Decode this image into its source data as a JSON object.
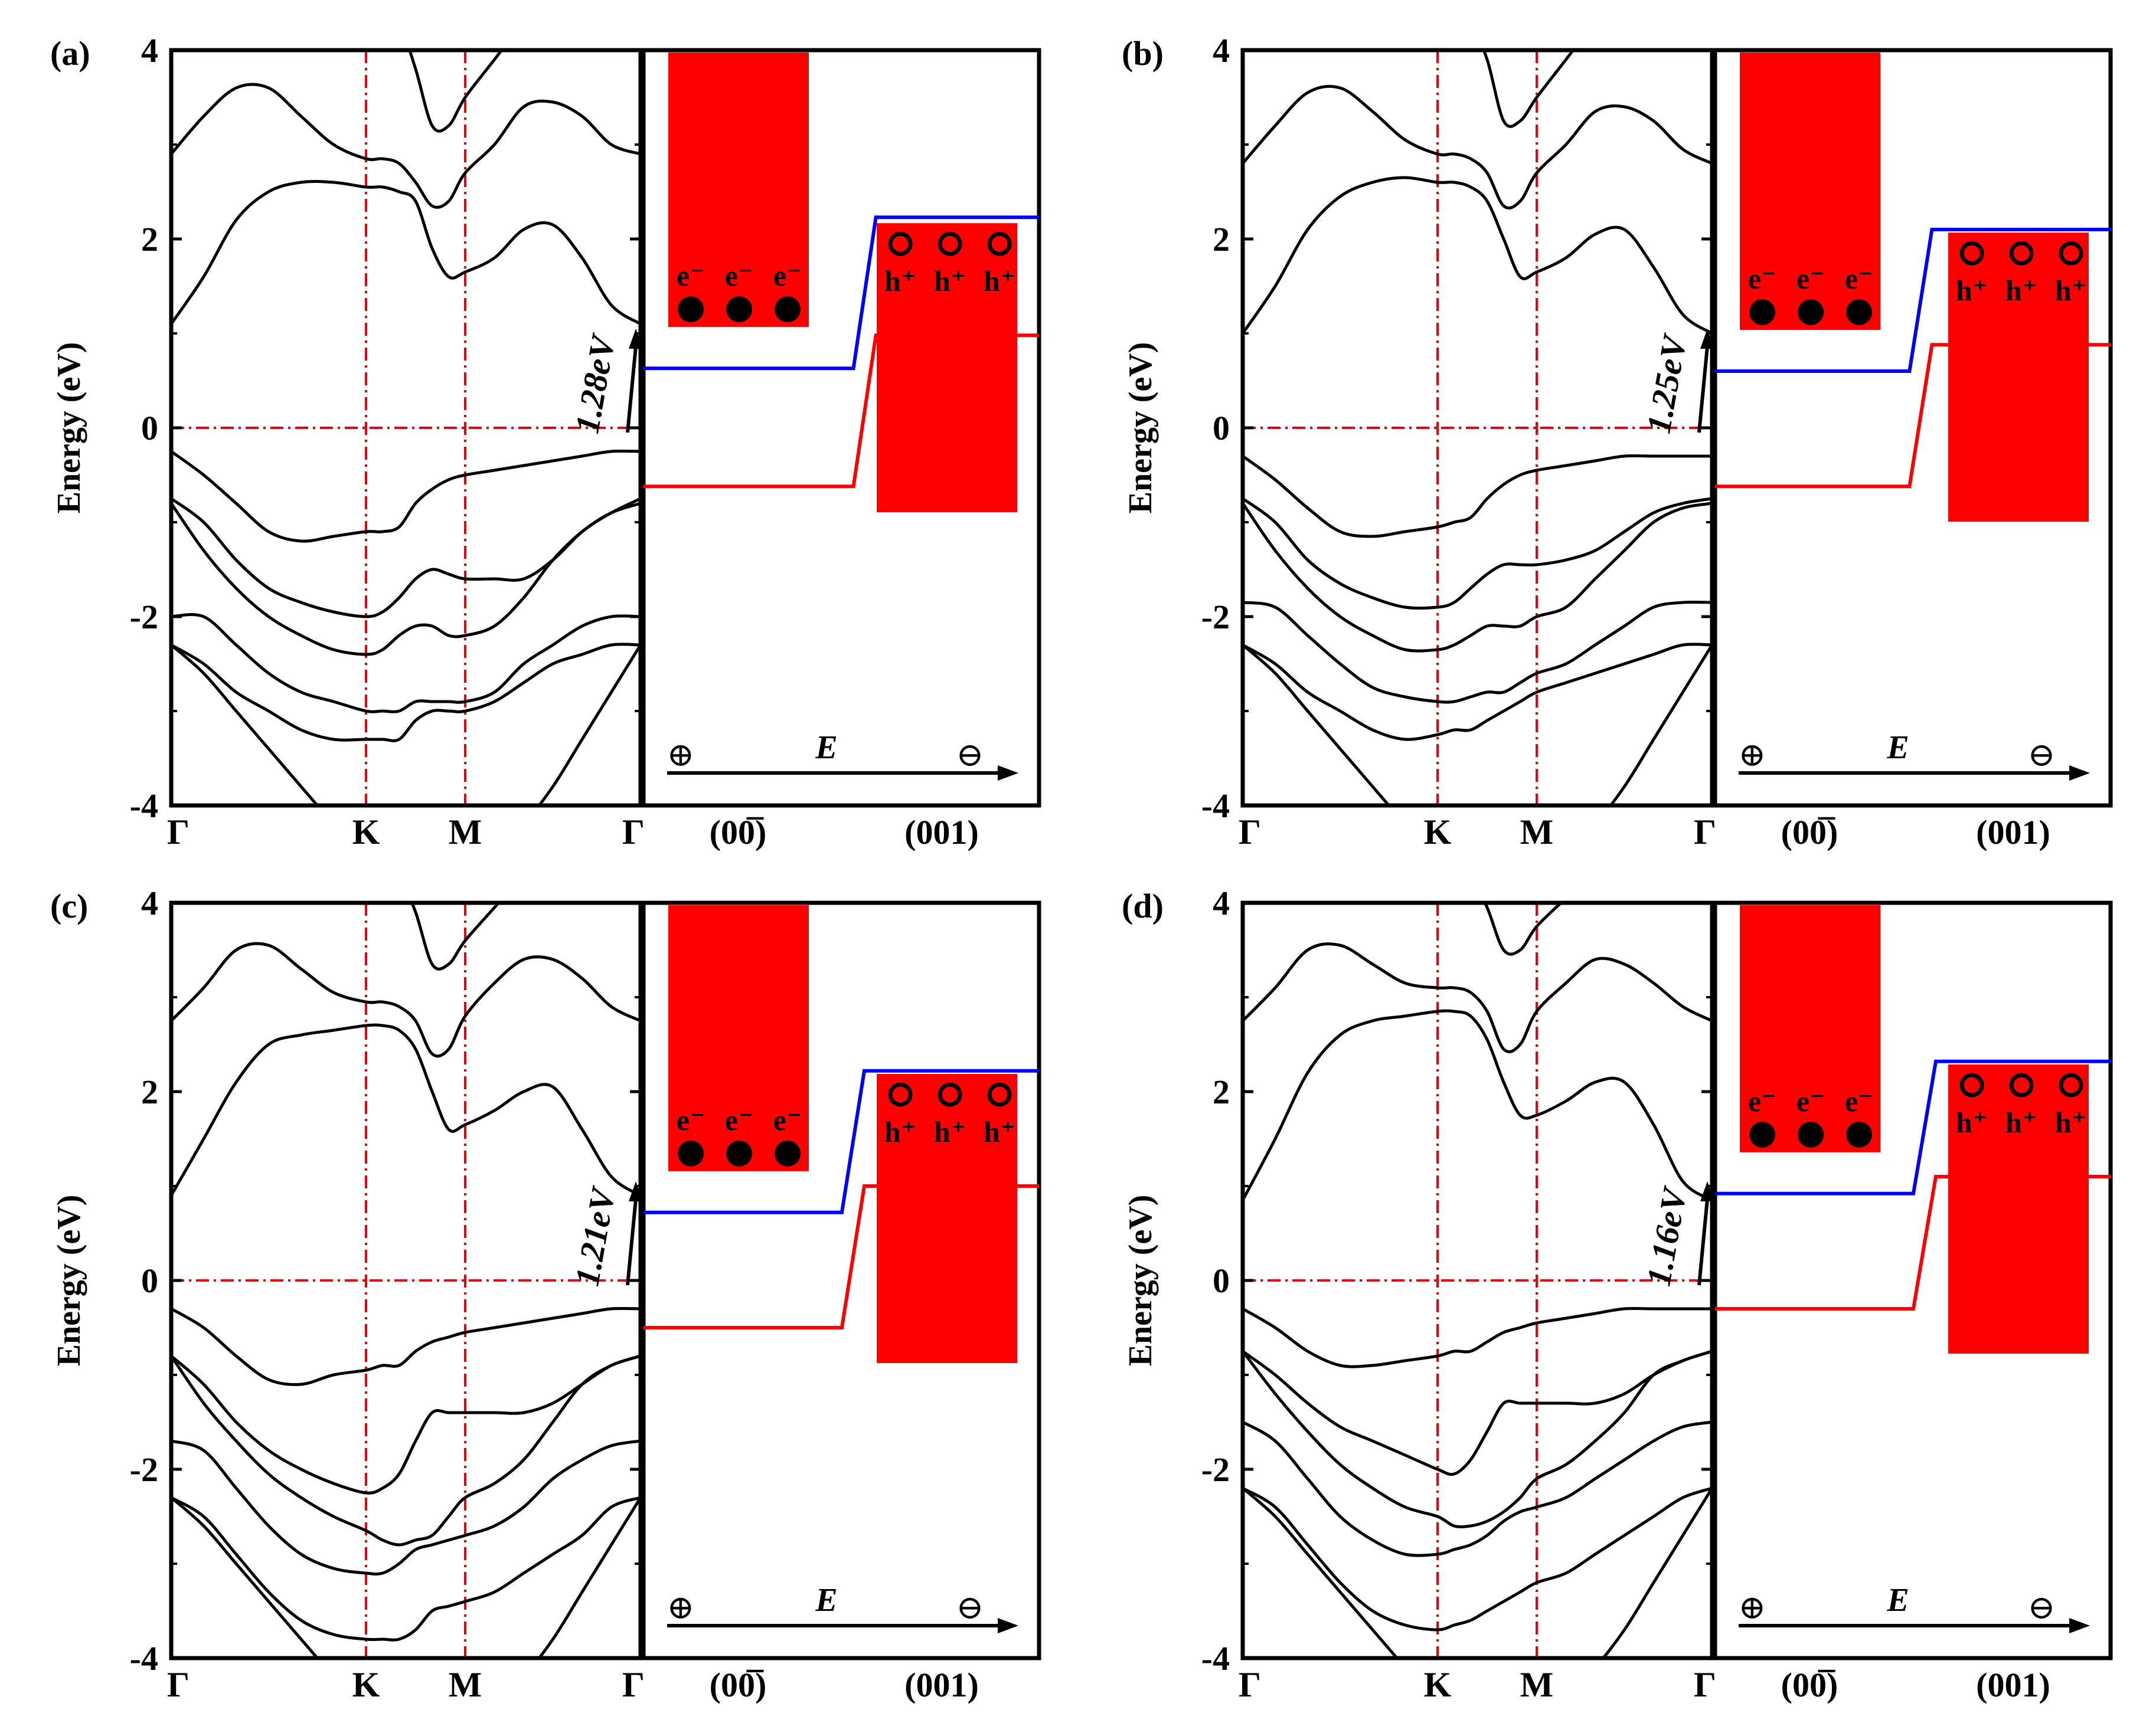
{
  "chart_data": [
    {
      "panel": "(a)",
      "type": "line",
      "ylabel": "Energy (eV)",
      "ylim": [
        -4,
        4
      ],
      "yticks": [
        "-4",
        "-2",
        "0",
        "2",
        "4"
      ],
      "kpoints": [
        "Γ",
        "K",
        "M",
        "Γ"
      ],
      "gap_label": "1.28eV",
      "x": [
        0,
        0.5,
        1,
        1.5,
        2,
        2.5,
        3,
        3.5,
        4,
        4.5,
        5,
        5.5,
        6,
        6.5,
        7,
        7.5,
        8,
        8.5,
        9
      ],
      "bands": [
        [
          -2.3,
          -2.6,
          -3.0,
          -3.4,
          -3.8,
          -4.2,
          -4.6,
          -5.0,
          -5.4,
          -5.0,
          -4.8,
          -4.7,
          -4.6,
          -4.5,
          -4.2,
          -3.8,
          -3.3,
          -2.8,
          -2.3
        ],
        [
          -2.3,
          -2.5,
          -2.8,
          -3.0,
          -3.2,
          -3.3,
          -3.3,
          -3.3,
          -3.3,
          -3.1,
          -3.0,
          -3.0,
          -3.0,
          -2.9,
          -2.7,
          -2.5,
          -2.4,
          -2.3,
          -2.3
        ],
        [
          -2.0,
          -2.0,
          -2.3,
          -2.6,
          -2.8,
          -2.9,
          -3.0,
          -3.0,
          -3.0,
          -2.9,
          -2.9,
          -2.9,
          -2.9,
          -2.8,
          -2.5,
          -2.3,
          -2.1,
          -2.0,
          -2.0
        ],
        [
          -0.8,
          -1.3,
          -1.7,
          -2.0,
          -2.2,
          -2.35,
          -2.4,
          -2.35,
          -2.2,
          -2.1,
          -2.1,
          -2.2,
          -2.2,
          -2.1,
          -1.8,
          -1.4,
          -1.1,
          -0.9,
          -0.8
        ],
        [
          -0.75,
          -1.0,
          -1.4,
          -1.7,
          -1.85,
          -1.95,
          -2.0,
          -1.95,
          -1.8,
          -1.6,
          -1.5,
          -1.55,
          -1.6,
          -1.6,
          -1.6,
          -1.4,
          -1.1,
          -0.9,
          -0.75
        ],
        [
          -0.25,
          -0.5,
          -0.8,
          -1.1,
          -1.2,
          -1.15,
          -1.1,
          -1.1,
          -1.05,
          -0.8,
          -0.65,
          -0.55,
          -0.5,
          -0.45,
          -0.4,
          -0.35,
          -0.3,
          -0.25,
          -0.25
        ],
        [
          1.1,
          1.6,
          2.2,
          2.5,
          2.6,
          2.6,
          2.55,
          2.55,
          2.5,
          2.4,
          1.9,
          1.6,
          1.65,
          1.8,
          2.1,
          2.15,
          1.8,
          1.3,
          1.1
        ],
        [
          2.9,
          3.3,
          3.6,
          3.6,
          3.3,
          3.0,
          2.85,
          2.85,
          2.8,
          2.6,
          2.35,
          2.4,
          2.7,
          3.0,
          3.4,
          3.45,
          3.3,
          3.0,
          2.9
        ],
        [
          4.5,
          4.8,
          5.0,
          5.1,
          5.0,
          4.8,
          4.6,
          4.5,
          4.3,
          3.8,
          3.2,
          3.2,
          3.5,
          3.9,
          4.3,
          4.6,
          4.7,
          4.6,
          4.5
        ]
      ],
      "diagram": {
        "facets": [
          "(00̅)",
          "(001)"
        ],
        "field_label": "E",
        "plus_symbol": "⊕",
        "minus_symbol": "⊖",
        "electron_label": "e⁻",
        "hole_label": "h⁺",
        "cbm": [
          0.63,
          2.23
        ],
        "vbm": [
          -0.62,
          0.98
        ],
        "step_fraction": 0.52
      }
    },
    {
      "panel": "(b)",
      "type": "line",
      "ylabel": "Energy (eV)",
      "ylim": [
        -4,
        4
      ],
      "yticks": [
        "-4",
        "-2",
        "0",
        "2",
        "4"
      ],
      "kpoints": [
        "Γ",
        "K",
        "M",
        "Γ"
      ],
      "gap_label": "1.25eV",
      "x": [
        0,
        0.5,
        1,
        1.5,
        2,
        2.5,
        3,
        3.5,
        4,
        4.5,
        5,
        5.5,
        6,
        6.5,
        7,
        7.5,
        8,
        8.5,
        9
      ],
      "bands": [
        [
          -2.3,
          -2.6,
          -3.0,
          -3.4,
          -3.8,
          -4.2,
          -4.6,
          -5.0,
          -5.4,
          -5.0,
          -4.8,
          -4.7,
          -4.6,
          -4.5,
          -4.2,
          -3.8,
          -3.3,
          -2.8,
          -2.3
        ],
        [
          -2.3,
          -2.5,
          -2.8,
          -3.0,
          -3.2,
          -3.3,
          -3.25,
          -3.2,
          -3.2,
          -3.1,
          -3.0,
          -2.9,
          -2.8,
          -2.7,
          -2.6,
          -2.5,
          -2.4,
          -2.3,
          -2.3
        ],
        [
          -1.85,
          -1.9,
          -2.2,
          -2.5,
          -2.75,
          -2.85,
          -2.9,
          -2.9,
          -2.85,
          -2.8,
          -2.8,
          -2.7,
          -2.6,
          -2.5,
          -2.3,
          -2.1,
          -1.9,
          -1.85,
          -1.85
        ],
        [
          -0.8,
          -1.3,
          -1.7,
          -2.0,
          -2.2,
          -2.35,
          -2.35,
          -2.3,
          -2.2,
          -2.1,
          -2.1,
          -2.1,
          -2.0,
          -1.9,
          -1.6,
          -1.3,
          -1.0,
          -0.85,
          -0.8
        ],
        [
          -0.75,
          -1.0,
          -1.4,
          -1.65,
          -1.8,
          -1.9,
          -1.9,
          -1.85,
          -1.7,
          -1.55,
          -1.45,
          -1.45,
          -1.45,
          -1.4,
          -1.3,
          -1.1,
          -0.9,
          -0.8,
          -0.75
        ],
        [
          -0.3,
          -0.55,
          -0.85,
          -1.1,
          -1.15,
          -1.1,
          -1.05,
          -1.0,
          -0.95,
          -0.75,
          -0.6,
          -0.5,
          -0.45,
          -0.4,
          -0.35,
          -0.3,
          -0.3,
          -0.3,
          -0.3
        ],
        [
          1.0,
          1.5,
          2.1,
          2.45,
          2.6,
          2.65,
          2.6,
          2.6,
          2.55,
          2.4,
          2.0,
          1.6,
          1.65,
          1.8,
          2.05,
          2.1,
          1.7,
          1.2,
          1.0
        ],
        [
          2.8,
          3.2,
          3.55,
          3.6,
          3.35,
          3.05,
          2.9,
          2.9,
          2.85,
          2.7,
          2.35,
          2.4,
          2.7,
          3.0,
          3.35,
          3.4,
          3.25,
          2.95,
          2.8
        ],
        [
          4.5,
          4.8,
          5.0,
          5.1,
          5.0,
          4.8,
          4.6,
          4.5,
          4.3,
          3.9,
          3.25,
          3.25,
          3.5,
          3.9,
          4.3,
          4.6,
          4.7,
          4.6,
          4.5
        ]
      ],
      "diagram": {
        "facets": [
          "(00̅)",
          "(001)"
        ],
        "field_label": "E",
        "plus_symbol": "⊕",
        "minus_symbol": "⊖",
        "electron_label": "e⁻",
        "hole_label": "h⁺",
        "cbm": [
          0.6,
          2.1
        ],
        "vbm": [
          -0.62,
          0.88
        ],
        "step_fraction": 0.48
      }
    },
    {
      "panel": "(c)",
      "type": "line",
      "ylabel": "Energy (eV)",
      "ylim": [
        -4,
        4
      ],
      "yticks": [
        "-4",
        "-2",
        "0",
        "2",
        "4"
      ],
      "kpoints": [
        "Γ",
        "K",
        "M",
        "Γ"
      ],
      "gap_label": "1.21eV",
      "x": [
        0,
        0.5,
        1,
        1.5,
        2,
        2.5,
        3,
        3.5,
        4,
        4.5,
        5,
        5.5,
        6,
        6.5,
        7,
        7.5,
        8,
        8.5,
        9
      ],
      "bands": [
        [
          -2.3,
          -2.6,
          -3.0,
          -3.4,
          -3.8,
          -4.2,
          -4.6,
          -5.0,
          -5.4,
          -5.0,
          -4.8,
          -4.7,
          -4.6,
          -4.5,
          -4.2,
          -3.8,
          -3.3,
          -2.8,
          -2.3
        ],
        [
          -2.3,
          -2.5,
          -2.9,
          -3.3,
          -3.6,
          -3.75,
          -3.8,
          -3.8,
          -3.8,
          -3.7,
          -3.5,
          -3.45,
          -3.4,
          -3.3,
          -3.1,
          -2.9,
          -2.7,
          -2.4,
          -2.3
        ],
        [
          -1.7,
          -1.8,
          -2.2,
          -2.6,
          -2.9,
          -3.05,
          -3.1,
          -3.1,
          -3.0,
          -2.85,
          -2.8,
          -2.75,
          -2.7,
          -2.6,
          -2.4,
          -2.1,
          -1.9,
          -1.75,
          -1.7
        ],
        [
          -0.8,
          -1.3,
          -1.7,
          -2.05,
          -2.3,
          -2.5,
          -2.65,
          -2.75,
          -2.8,
          -2.75,
          -2.7,
          -2.5,
          -2.3,
          -2.15,
          -1.9,
          -1.5,
          -1.1,
          -0.9,
          -0.8
        ],
        [
          -0.8,
          -1.1,
          -1.5,
          -1.8,
          -2.0,
          -2.15,
          -2.25,
          -2.2,
          -2.05,
          -1.7,
          -1.4,
          -1.4,
          -1.4,
          -1.4,
          -1.4,
          -1.3,
          -1.1,
          -0.9,
          -0.8
        ],
        [
          -0.3,
          -0.5,
          -0.8,
          -1.05,
          -1.1,
          -1.0,
          -0.95,
          -0.9,
          -0.9,
          -0.75,
          -0.65,
          -0.6,
          -0.55,
          -0.5,
          -0.45,
          -0.4,
          -0.35,
          -0.3,
          -0.3
        ],
        [
          0.9,
          1.5,
          2.1,
          2.5,
          2.6,
          2.65,
          2.7,
          2.7,
          2.65,
          2.45,
          2.0,
          1.6,
          1.65,
          1.8,
          2.0,
          2.05,
          1.6,
          1.1,
          0.9
        ],
        [
          2.75,
          3.1,
          3.5,
          3.55,
          3.3,
          3.05,
          2.95,
          2.95,
          2.9,
          2.75,
          2.4,
          2.45,
          2.8,
          3.15,
          3.4,
          3.4,
          3.2,
          2.9,
          2.75
        ],
        [
          4.5,
          4.8,
          5.0,
          5.1,
          5.0,
          4.8,
          4.6,
          4.5,
          4.3,
          3.9,
          3.35,
          3.35,
          3.6,
          3.95,
          4.3,
          4.6,
          4.7,
          4.6,
          4.5
        ]
      ],
      "diagram": {
        "facets": [
          "(00̅)",
          "(001)"
        ],
        "field_label": "E",
        "plus_symbol": "⊕",
        "minus_symbol": "⊖",
        "electron_label": "e⁻",
        "hole_label": "h⁺",
        "cbm": [
          0.72,
          2.22
        ],
        "vbm": [
          -0.5,
          1.0
        ],
        "step_fraction": 0.49
      }
    },
    {
      "panel": "(d)",
      "type": "line",
      "ylabel": "Energy (eV)",
      "ylim": [
        -4,
        4
      ],
      "yticks": [
        "-4",
        "-2",
        "0",
        "2",
        "4"
      ],
      "kpoints": [
        "Γ",
        "K",
        "M",
        "Γ"
      ],
      "gap_label": "1.16eV",
      "x": [
        0,
        0.5,
        1,
        1.5,
        2,
        2.5,
        3,
        3.5,
        4,
        4.5,
        5,
        5.5,
        6,
        6.5,
        7,
        7.5,
        8,
        8.5,
        9
      ],
      "bands": [
        [
          -2.2,
          -2.5,
          -2.9,
          -3.3,
          -3.7,
          -4.1,
          -4.5,
          -4.9,
          -5.3,
          -5.0,
          -4.8,
          -4.7,
          -4.6,
          -4.4,
          -4.1,
          -3.7,
          -3.2,
          -2.7,
          -2.2
        ],
        [
          -2.2,
          -2.4,
          -2.8,
          -3.2,
          -3.5,
          -3.65,
          -3.7,
          -3.65,
          -3.6,
          -3.5,
          -3.4,
          -3.3,
          -3.2,
          -3.1,
          -2.9,
          -2.7,
          -2.5,
          -2.3,
          -2.2
        ],
        [
          -1.5,
          -1.7,
          -2.1,
          -2.5,
          -2.75,
          -2.9,
          -2.9,
          -2.85,
          -2.8,
          -2.7,
          -2.55,
          -2.45,
          -2.4,
          -2.3,
          -2.1,
          -1.9,
          -1.7,
          -1.55,
          -1.5
        ],
        [
          -0.75,
          -1.2,
          -1.6,
          -1.95,
          -2.2,
          -2.4,
          -2.5,
          -2.6,
          -2.6,
          -2.55,
          -2.45,
          -2.3,
          -2.1,
          -1.95,
          -1.7,
          -1.4,
          -1.0,
          -0.85,
          -0.75
        ],
        [
          -0.75,
          -1.0,
          -1.3,
          -1.55,
          -1.7,
          -1.85,
          -2.0,
          -2.05,
          -1.9,
          -1.6,
          -1.3,
          -1.3,
          -1.3,
          -1.3,
          -1.3,
          -1.2,
          -1.0,
          -0.85,
          -0.75
        ],
        [
          -0.3,
          -0.5,
          -0.75,
          -0.9,
          -0.9,
          -0.85,
          -0.8,
          -0.75,
          -0.75,
          -0.65,
          -0.55,
          -0.5,
          -0.45,
          -0.4,
          -0.35,
          -0.3,
          -0.3,
          -0.3,
          -0.3
        ],
        [
          0.85,
          1.5,
          2.2,
          2.6,
          2.75,
          2.8,
          2.85,
          2.85,
          2.8,
          2.55,
          2.1,
          1.75,
          1.75,
          1.9,
          2.1,
          2.1,
          1.65,
          1.05,
          0.85
        ],
        [
          2.75,
          3.1,
          3.5,
          3.55,
          3.35,
          3.15,
          3.1,
          3.1,
          3.05,
          2.85,
          2.45,
          2.5,
          2.85,
          3.15,
          3.4,
          3.35,
          3.15,
          2.9,
          2.75
        ],
        [
          4.5,
          4.8,
          5.0,
          5.1,
          5.0,
          4.8,
          4.6,
          4.5,
          4.3,
          3.95,
          3.5,
          3.5,
          3.75,
          4.05,
          4.35,
          4.6,
          4.7,
          4.6,
          4.5
        ]
      ],
      "diagram": {
        "facets": [
          "(00̅)",
          "(001)"
        ],
        "field_label": "E",
        "plus_symbol": "⊕",
        "minus_symbol": "⊖",
        "electron_label": "e⁻",
        "hole_label": "h⁺",
        "cbm": [
          0.92,
          2.32
        ],
        "vbm": [
          -0.3,
          1.1
        ],
        "step_fraction": 0.49
      }
    }
  ],
  "colors": {
    "bands": "#000000",
    "guides": "#e8000b",
    "cbm": "#0000ff",
    "vbm": "#ff0000",
    "fill": "#ff0000"
  }
}
